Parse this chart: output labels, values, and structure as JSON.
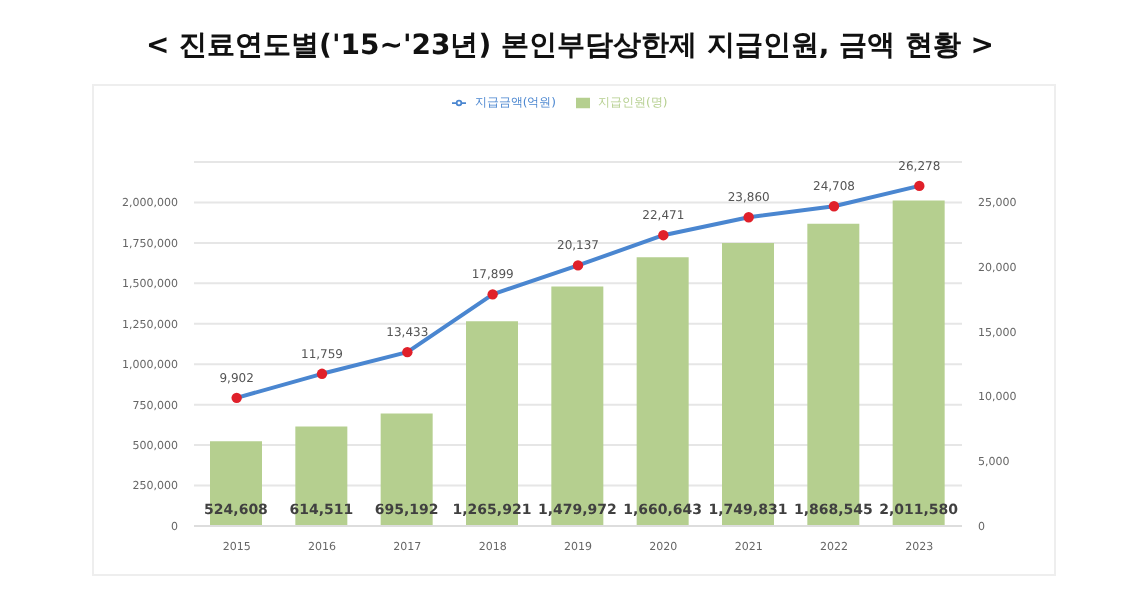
{
  "chart_data": {
    "type": "bar",
    "title": "< 진료연도별('15~'23년) 본인부담상한제 지급인원, 금액 현황 >",
    "categories": [
      "2015",
      "2016",
      "2017",
      "2018",
      "2019",
      "2020",
      "2021",
      "2022",
      "2023"
    ],
    "series": [
      {
        "name": "지급인원(명)",
        "color": "#b5cf8f",
        "values": [
          524608,
          614511,
          695192,
          1265921,
          1479972,
          1660643,
          1749831,
          1868545,
          2011580
        ],
        "value_labels": [
          "524,608",
          "614,511",
          "695,192",
          "1,265,921",
          "1,479,972",
          "1,660,643",
          "1,749,831",
          "1,868,545",
          "2,011,580"
        ]
      },
      {
        "name": "지급금액(억원)",
        "type": "line",
        "axis": "y2",
        "color": "#4a86d0",
        "values": [
          9902,
          11759,
          13433,
          17899,
          20137,
          22471,
          23860,
          24708,
          26278
        ],
        "value_labels": [
          "9,902",
          "11,759",
          "13,433",
          "17,899",
          "20,137",
          "22,471",
          "23,860",
          "24,708",
          "26,278"
        ]
      }
    ],
    "ylim": [
      0,
      2250000
    ],
    "yticks": [
      0,
      {
        "value": 250000,
        "label": "250,000"
      },
      {
        "value": 500000,
        "label": "500,000"
      },
      {
        "value": 750000,
        "label": "750,000"
      },
      {
        "value": 1000000,
        "label": "1,000,000"
      },
      {
        "value": 1250000,
        "label": "1,250,000"
      },
      {
        "value": 1500000,
        "label": "1,500,000"
      },
      {
        "value": 1750000,
        "label": "1,750,000"
      },
      {
        "value": 2000000,
        "label": "2,000,000"
      }
    ],
    "y2lim": [
      0,
      28125
    ],
    "y2ticks": [
      0,
      {
        "value": 5000,
        "label": "5,000"
      },
      {
        "value": 10000,
        "label": "10,000"
      },
      {
        "value": 15000,
        "label": "15,000"
      },
      {
        "value": 20000,
        "label": "20,000"
      },
      {
        "value": 25000,
        "label": "25,000"
      }
    ],
    "grid": "y",
    "legend": "top",
    "marker": "circle",
    "line_style": "solid"
  }
}
